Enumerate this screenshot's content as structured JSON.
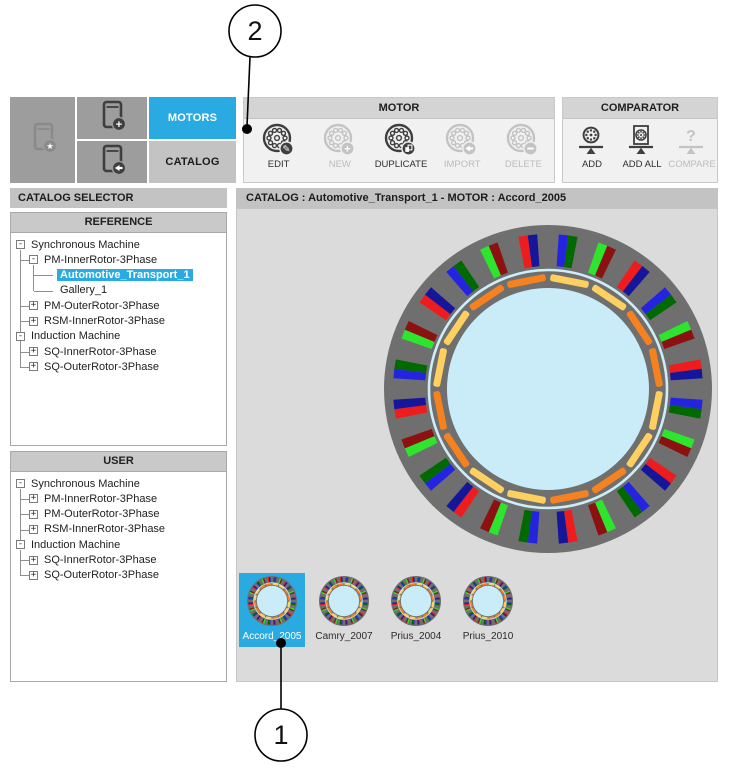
{
  "accent": "#29abe2",
  "callouts": {
    "top_label": "2",
    "bottom_label": "1"
  },
  "tabs": {
    "motors": "MOTORS",
    "catalog": "CATALOG",
    "active": "MOTORS"
  },
  "side_buttons": [
    {
      "id": "catalog-manager",
      "icon": "book-star",
      "enabled": false
    },
    {
      "id": "catalog-new",
      "icon": "book-plus",
      "enabled": true
    },
    {
      "id": "catalog-import",
      "icon": "book-arrow",
      "enabled": true
    }
  ],
  "motor_toolbar": {
    "title": "MOTOR",
    "buttons": [
      {
        "label": "EDIT",
        "badge": "pencil",
        "enabled": true
      },
      {
        "label": "NEW",
        "badge": "plus",
        "enabled": false
      },
      {
        "label": "DUPLICATE",
        "badge": "copy",
        "enabled": true
      },
      {
        "label": "IMPORT",
        "badge": "arrow-left",
        "enabled": false
      },
      {
        "label": "DELETE",
        "badge": "minus",
        "enabled": false
      }
    ]
  },
  "comparator_toolbar": {
    "title": "COMPARATOR",
    "buttons": [
      {
        "label": "ADD",
        "icon": "wheel",
        "enabled": true
      },
      {
        "label": "ADD ALL",
        "icon": "wheel-box",
        "enabled": true
      },
      {
        "label": "COMPARE",
        "icon": "question",
        "enabled": false
      }
    ]
  },
  "catalog_selector": {
    "title": "CATALOG SELECTOR",
    "reference": {
      "title": "REFERENCE",
      "tree": [
        {
          "label": "Synchronous Machine",
          "exp": "minus",
          "children": [
            {
              "label": "PM-InnerRotor-3Phase",
              "exp": "minus",
              "children": [
                {
                  "label": "Automotive_Transport_1",
                  "exp": null,
                  "sel": true
                },
                {
                  "label": "Gallery_1",
                  "exp": null
                }
              ]
            },
            {
              "label": "PM-OuterRotor-3Phase",
              "exp": "plus"
            },
            {
              "label": "RSM-InnerRotor-3Phase",
              "exp": "plus"
            }
          ]
        },
        {
          "label": "Induction Machine",
          "exp": "minus",
          "children": [
            {
              "label": "SQ-InnerRotor-3Phase",
              "exp": "plus"
            },
            {
              "label": "SQ-OuterRotor-3Phase",
              "exp": "plus"
            }
          ]
        }
      ]
    },
    "user": {
      "title": "USER",
      "tree": [
        {
          "label": "Synchronous Machine",
          "exp": "minus",
          "children": [
            {
              "label": "PM-InnerRotor-3Phase",
              "exp": "plus"
            },
            {
              "label": "PM-OuterRotor-3Phase",
              "exp": "plus"
            },
            {
              "label": "RSM-InnerRotor-3Phase",
              "exp": "plus"
            }
          ]
        },
        {
          "label": "Induction Machine",
          "exp": "minus",
          "children": [
            {
              "label": "SQ-InnerRotor-3Phase",
              "exp": "plus"
            },
            {
              "label": "SQ-OuterRotor-3Phase",
              "exp": "plus"
            }
          ]
        }
      ]
    }
  },
  "main": {
    "header": "CATALOG : Automotive_Transport_1   -   MOTOR : Accord_2005",
    "thumbnails": [
      {
        "name": "Accord_2005",
        "selected": true
      },
      {
        "name": "Camry_2007",
        "selected": false
      },
      {
        "name": "Prius_2004",
        "selected": false
      },
      {
        "name": "Prius_2010",
        "selected": false
      }
    ]
  },
  "motor_graphic": {
    "steel": "#6f6f6f",
    "bore": "#c9ecf8",
    "airgap": "#cdeef8",
    "magnet_orange": "#f5821f",
    "magnet_gold": "#fdd05f",
    "slot_pairs": [
      [
        "#2424e0",
        "#006a00"
      ],
      [
        "#2ee52e",
        "#8c1212"
      ],
      [
        "#ee1c1c",
        "#16169b"
      ]
    ],
    "num_slots": 24,
    "num_magnets": 16
  },
  "icon_colors": {
    "enabled": "#3f3f3f",
    "disabled": "#c3c3c3",
    "faded": "#8a8a8a"
  }
}
